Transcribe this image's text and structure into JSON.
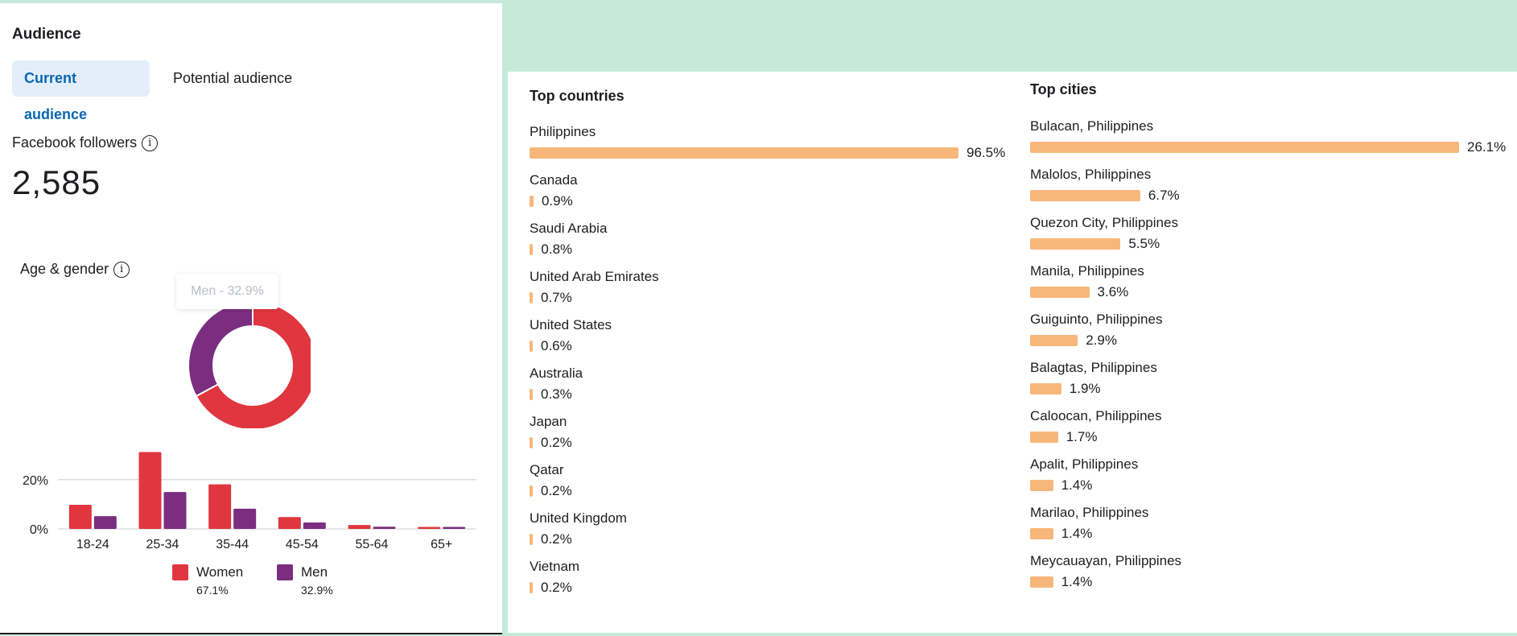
{
  "audience": {
    "title": "Audience",
    "tabs": [
      "Current audience",
      "Potential audience"
    ]
  },
  "followers": {
    "label": "Facebook followers",
    "count": "2,585"
  },
  "age_gender": {
    "label": "Age & gender",
    "tooltip": "Men - 32.9%"
  },
  "chart_data": [
    {
      "type": "pie",
      "labels": [
        "Women",
        "Men"
      ],
      "values": [
        67.1,
        32.9
      ],
      "colors": [
        "#e0363f",
        "#7b2e7f"
      ]
    },
    {
      "type": "bar",
      "categories": [
        "18-24",
        "25-34",
        "35-44",
        "45-54",
        "55-64",
        "65+"
      ],
      "series": [
        {
          "name": "Women",
          "values": [
            9.8,
            31.2,
            18.1,
            4.8,
            1.6,
            0.8
          ]
        },
        {
          "name": "Men",
          "values": [
            5.2,
            15.0,
            8.2,
            2.6,
            0.9,
            0.8
          ]
        }
      ],
      "yticks": [
        "0%",
        "20%"
      ],
      "ylim": [
        0,
        32
      ]
    }
  ],
  "legend": [
    {
      "name": "Women",
      "pct": "67.1%",
      "color": "#e0363f"
    },
    {
      "name": "Men",
      "pct": "32.9%",
      "color": "#7b2e7f"
    }
  ],
  "top_countries": {
    "title": "Top countries",
    "items": [
      {
        "name": "Philippines",
        "pct": "96.5%",
        "value": 96.5
      },
      {
        "name": "Canada",
        "pct": "0.9%",
        "value": 0.9
      },
      {
        "name": "Saudi Arabia",
        "pct": "0.8%",
        "value": 0.8
      },
      {
        "name": "United Arab Emirates",
        "pct": "0.7%",
        "value": 0.7
      },
      {
        "name": "United States",
        "pct": "0.6%",
        "value": 0.6
      },
      {
        "name": "Australia",
        "pct": "0.3%",
        "value": 0.3
      },
      {
        "name": "Japan",
        "pct": "0.2%",
        "value": 0.2
      },
      {
        "name": "Qatar",
        "pct": "0.2%",
        "value": 0.2
      },
      {
        "name": "United Kingdom",
        "pct": "0.2%",
        "value": 0.2
      },
      {
        "name": "Vietnam",
        "pct": "0.2%",
        "value": 0.2
      }
    ]
  },
  "top_cities": {
    "title": "Top cities",
    "items": [
      {
        "name": "Bulacan, Philippines",
        "pct": "26.1%",
        "value": 26.1
      },
      {
        "name": "Malolos, Philippines",
        "pct": "6.7%",
        "value": 6.7
      },
      {
        "name": "Quezon City, Philippines",
        "pct": "5.5%",
        "value": 5.5
      },
      {
        "name": "Manila, Philippines",
        "pct": "3.6%",
        "value": 3.6
      },
      {
        "name": "Guiguinto, Philippines",
        "pct": "2.9%",
        "value": 2.9
      },
      {
        "name": "Balagtas, Philippines",
        "pct": "1.9%",
        "value": 1.9
      },
      {
        "name": "Caloocan, Philippines",
        "pct": "1.7%",
        "value": 1.7
      },
      {
        "name": "Apalit, Philippines",
        "pct": "1.4%",
        "value": 1.4
      },
      {
        "name": "Marilao, Philippines",
        "pct": "1.4%",
        "value": 1.4
      },
      {
        "name": "Meycauayan, Philippines",
        "pct": "1.4%",
        "value": 1.4
      }
    ]
  },
  "colors": {
    "accent": "#0a66b2",
    "bar": "#f7b77a",
    "background": "#c5eadc"
  }
}
